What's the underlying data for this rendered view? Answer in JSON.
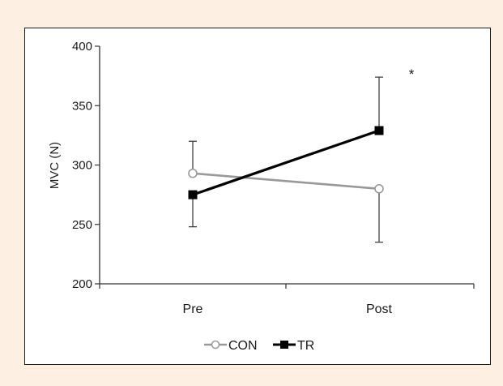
{
  "chart_data": {
    "type": "line",
    "title": "",
    "xlabel": "",
    "ylabel": "MVC (N)",
    "ylim": [
      200,
      400
    ],
    "yticks": [
      200,
      250,
      300,
      350,
      400
    ],
    "categories": [
      "Pre",
      "Post"
    ],
    "grid": false,
    "legend_position": "bottom-center",
    "series": [
      {
        "name": "CON",
        "values": [
          293,
          280
        ],
        "error_upper": [
          320,
          null
        ],
        "error_lower": [
          null,
          235
        ],
        "color": "#999999",
        "marker": "open-circle"
      },
      {
        "name": "TR",
        "values": [
          275,
          329
        ],
        "error_upper": [
          null,
          374
        ],
        "error_lower": [
          248,
          null
        ],
        "color": "#000000",
        "marker": "filled-square"
      }
    ],
    "annotations": [
      {
        "text": "*",
        "category": "Post"
      }
    ]
  }
}
